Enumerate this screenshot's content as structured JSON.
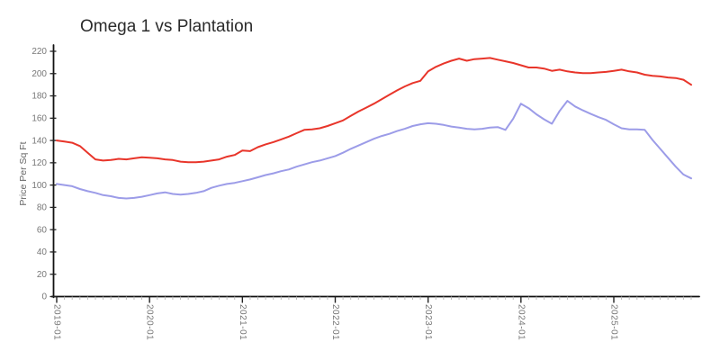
{
  "title": "Omega 1 vs Plantation",
  "colors": {
    "omega1_line": "#e8352a",
    "plantation_line": "#9c9ce8",
    "axis": "#111111",
    "tick_label": "#777777",
    "minor_tick": "#b8b8b8",
    "background": "#ffffff"
  },
  "chart_data": {
    "type": "line",
    "title": "Omega 1 vs Plantation",
    "xlabel": "",
    "ylabel": "Price Per Sq Ft",
    "ylim": [
      0,
      220
    ],
    "ytick_labels": [
      "0",
      "20",
      "40",
      "60",
      "80",
      "100",
      "120",
      "140",
      "160",
      "180",
      "200",
      "220"
    ],
    "x_major_tick_labels": [
      "2019-01",
      "2020-01",
      "2021-01",
      "2022-01",
      "2023-01",
      "2024-01",
      "2025-01"
    ],
    "x_monthly_from": "2019-01",
    "x_monthly_to": "2025-11",
    "grid": false,
    "legend": "none",
    "style": "xkcd-handdrawn",
    "series": [
      {
        "name": "Omega 1",
        "color": "#e8352a",
        "values": [
          140,
          139,
          138,
          135,
          129,
          123,
          122,
          122.5,
          123.5,
          123,
          124,
          125,
          124.5,
          124,
          123,
          122.5,
          121,
          120.5,
          120.5,
          121,
          122,
          123,
          125.5,
          127,
          131,
          130.5,
          134,
          136.5,
          138.5,
          141,
          143.5,
          146.5,
          149.5,
          150,
          151,
          153,
          155.5,
          158,
          162,
          166,
          169.5,
          173,
          177,
          181,
          185,
          188.5,
          191.5,
          193.5,
          202,
          206,
          209,
          211.5,
          213.5,
          211.5,
          213,
          213.5,
          214,
          212.5,
          211,
          209.5,
          207.5,
          205.5,
          205.5,
          204.5,
          202.5,
          203.5,
          202,
          201,
          200.5,
          200.5,
          201,
          201.5,
          202.5,
          203.5,
          202,
          201,
          199,
          198,
          197.5,
          196.5,
          196,
          194.5,
          190
        ]
      },
      {
        "name": "Plantation",
        "color": "#9c9ce8",
        "values": [
          101,
          100,
          99,
          96.5,
          94.5,
          93,
          91,
          90,
          88.5,
          88,
          88.5,
          89.5,
          91,
          92.5,
          93.5,
          92,
          91.5,
          92,
          93,
          94.5,
          97.5,
          99.5,
          101,
          102,
          103.5,
          105,
          107,
          109,
          110.5,
          112.5,
          114,
          116.5,
          118.5,
          120.5,
          122,
          124,
          126,
          129,
          132.5,
          135.5,
          138.5,
          141.5,
          144,
          146,
          148.5,
          150.5,
          153,
          154.5,
          155.5,
          155,
          154,
          152.5,
          151.5,
          150.5,
          150,
          150.5,
          151.5,
          152,
          149.5,
          159.5,
          173,
          169,
          163.5,
          159,
          155,
          166.5,
          175.5,
          170.5,
          167,
          164,
          161,
          158.5,
          154.5,
          151,
          150,
          150,
          149.5,
          140.5,
          132.5,
          124.5,
          116.5,
          109.5,
          106
        ]
      }
    ]
  }
}
